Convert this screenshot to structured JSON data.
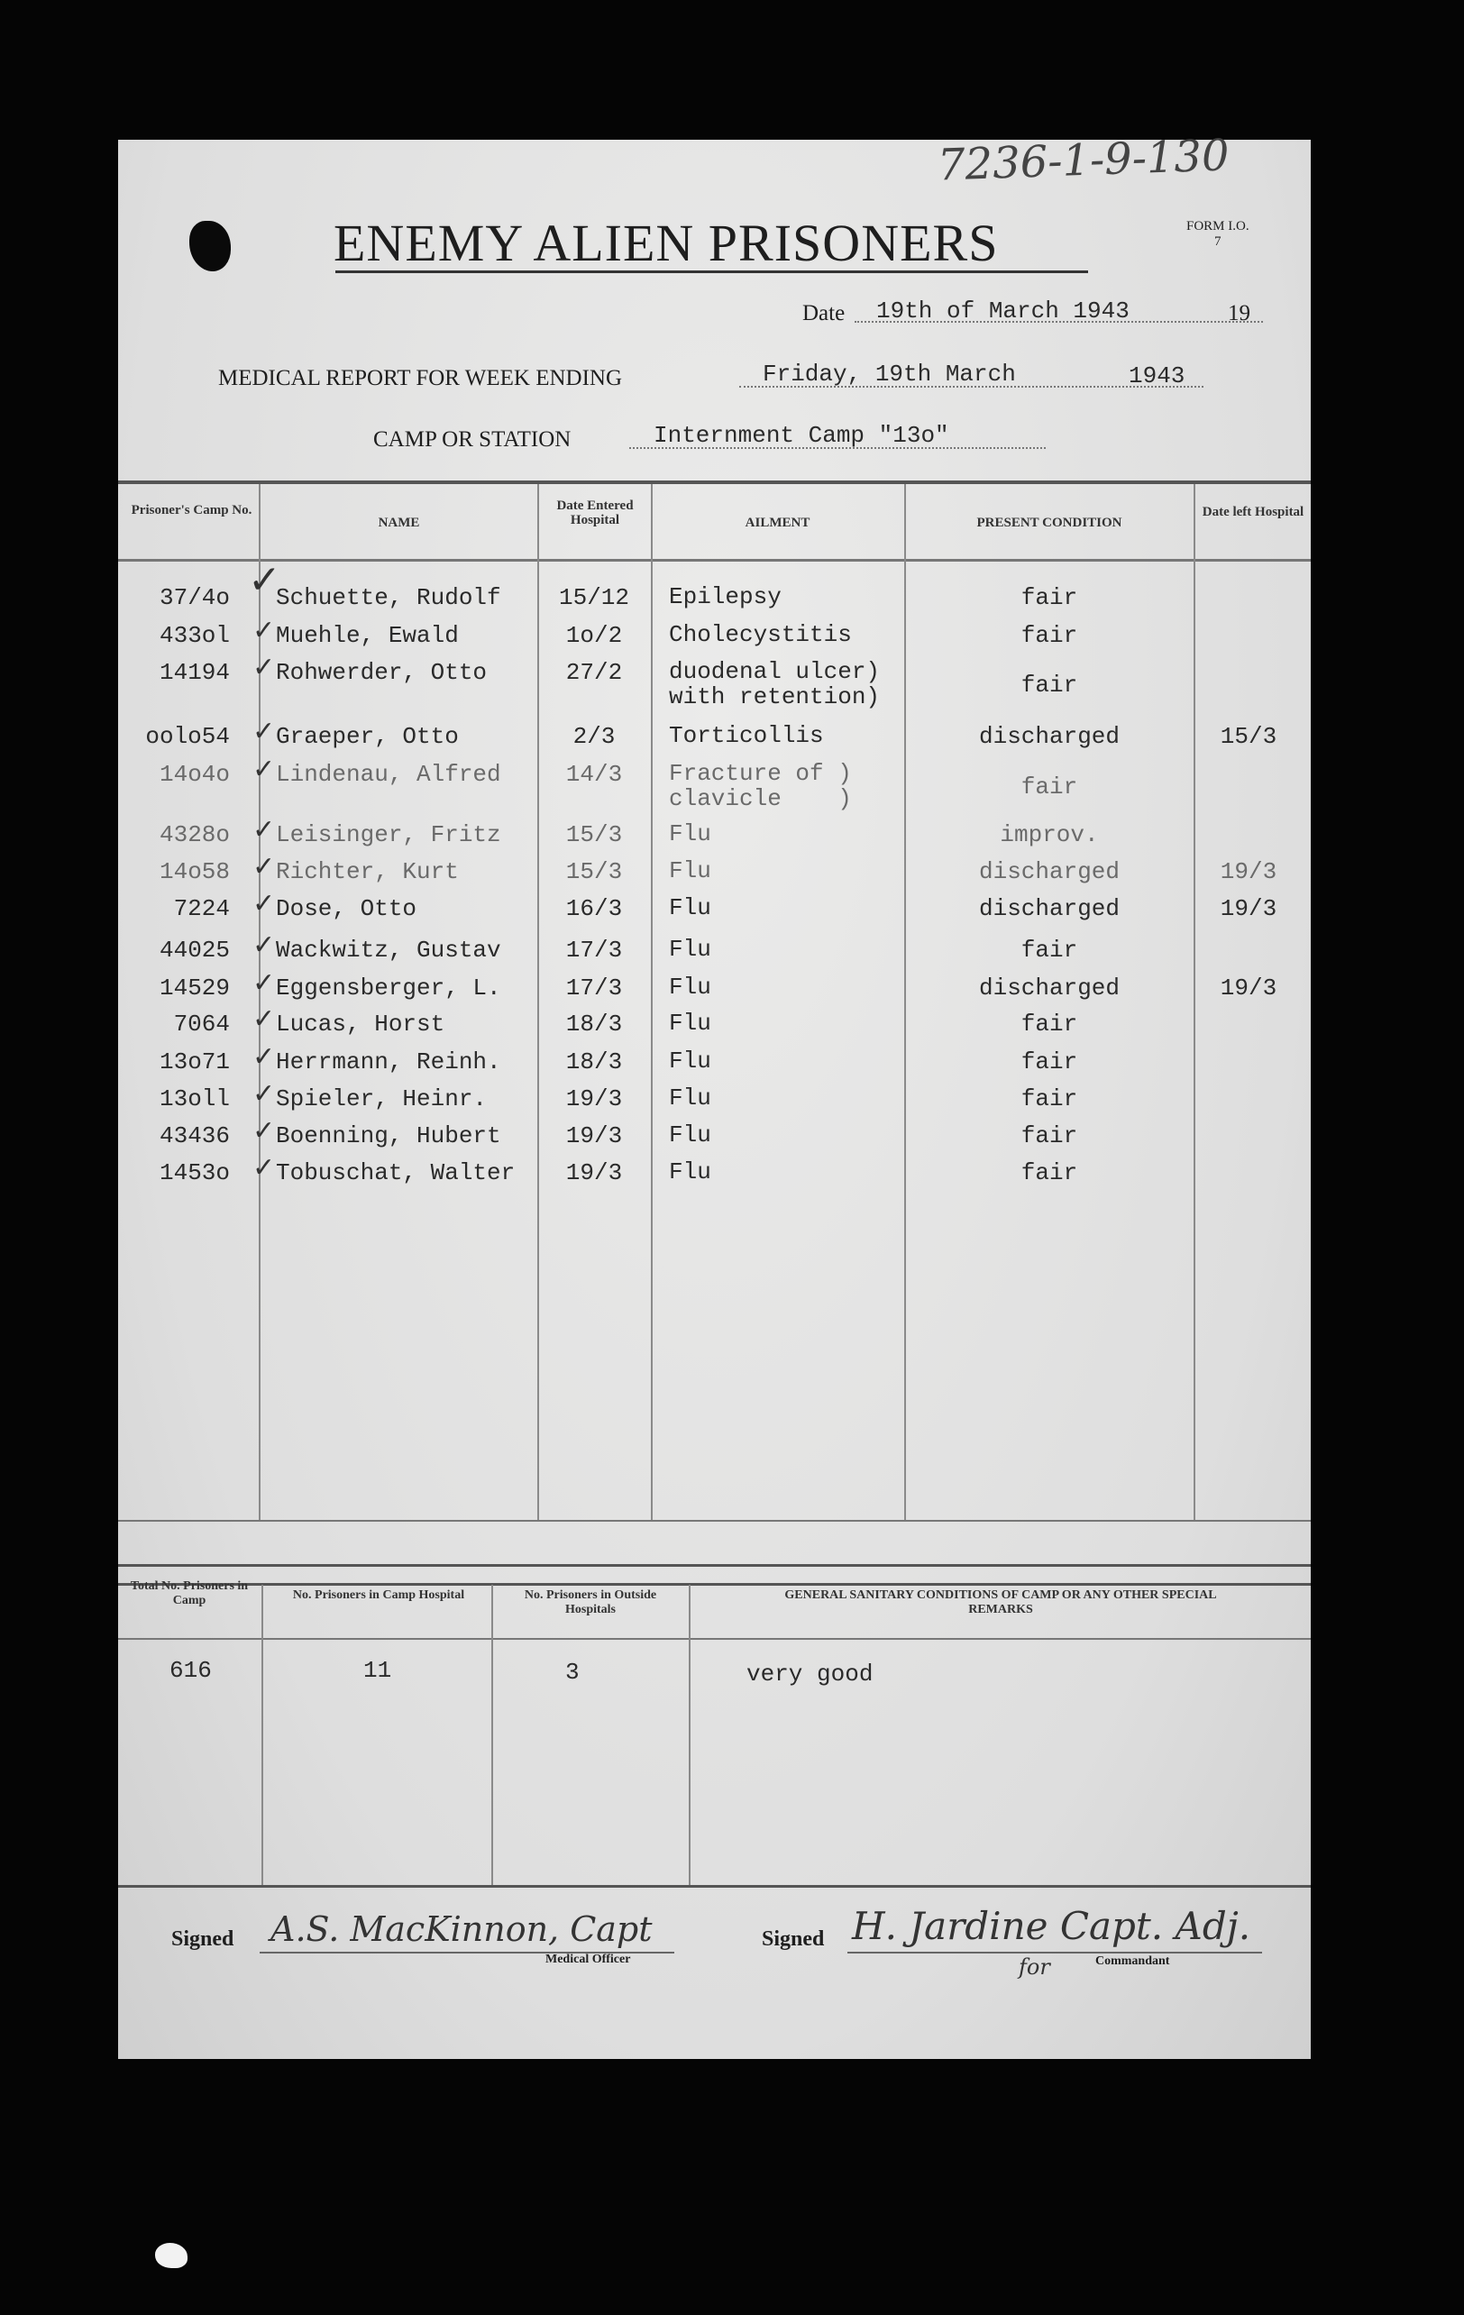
{
  "reference_number": "7236-1-9-130",
  "title": "ENEMY ALIEN PRISONERS",
  "form_id": {
    "label": "FORM I.O.",
    "number": "7"
  },
  "date": {
    "label": "Date",
    "value": "19th of March 1943",
    "suffix": "19"
  },
  "week_ending": {
    "label": "MEDICAL REPORT FOR WEEK ENDING",
    "value": "Friday, 19th March",
    "year": "1943"
  },
  "camp": {
    "label": "CAMP OR STATION",
    "value": "Internment Camp \"13o\""
  },
  "table": {
    "headers": [
      "Prisoner's Camp No.",
      "NAME",
      "Date Entered Hospital",
      "AILMENT",
      "PRESENT CONDITION",
      "Date left Hospital"
    ],
    "rows": [
      {
        "camp_no": "37/4o",
        "name": "Schuette, Rudolf",
        "entered": "15/12",
        "ailment": "Epilepsy",
        "condition": "fair",
        "left": ""
      },
      {
        "camp_no": "433ol",
        "name": "Muehle, Ewald",
        "entered": "1o/2",
        "ailment": "Cholecystitis",
        "condition": "fair",
        "left": ""
      },
      {
        "camp_no": "14194",
        "name": "Rohwerder, Otto",
        "entered": "27/2",
        "ailment": "duodenal ulcer)\nwith retention)",
        "condition": "fair",
        "left": ""
      },
      {
        "camp_no": "oolo54",
        "name": "Graeper, Otto",
        "entered": "2/3",
        "ailment": "Torticollis",
        "condition": "discharged",
        "left": "15/3"
      },
      {
        "camp_no": "14o4o",
        "name": "Lindenau, Alfred",
        "entered": "14/3",
        "ailment": "Fracture of )\nclavicle    )",
        "condition": "fair",
        "left": ""
      },
      {
        "camp_no": "4328o",
        "name": "Leisinger, Fritz",
        "entered": "15/3",
        "ailment": "Flu",
        "condition": "improv.",
        "left": ""
      },
      {
        "camp_no": "14o58",
        "name": "Richter, Kurt",
        "entered": "15/3",
        "ailment": "Flu",
        "condition": "discharged",
        "left": "19/3"
      },
      {
        "camp_no": "7224",
        "name": "Dose, Otto",
        "entered": "16/3",
        "ailment": "Flu",
        "condition": "discharged",
        "left": "19/3"
      },
      {
        "camp_no": "44025",
        "name": "Wackwitz, Gustav",
        "entered": "17/3",
        "ailment": "Flu",
        "condition": "fair",
        "left": ""
      },
      {
        "camp_no": "14529",
        "name": "Eggensberger, L.",
        "entered": "17/3",
        "ailment": "Flu",
        "condition": "discharged",
        "left": "19/3"
      },
      {
        "camp_no": "7064",
        "name": "Lucas, Horst",
        "entered": "18/3",
        "ailment": "Flu",
        "condition": "fair",
        "left": ""
      },
      {
        "camp_no": "13o71",
        "name": "Herrmann, Reinh.",
        "entered": "18/3",
        "ailment": "Flu",
        "condition": "fair",
        "left": ""
      },
      {
        "camp_no": "13oll",
        "name": "Spieler, Heinr.",
        "entered": "19/3",
        "ailment": "Flu",
        "condition": "fair",
        "left": ""
      },
      {
        "camp_no": "43436",
        "name": "Boenning, Hubert",
        "entered": "19/3",
        "ailment": "Flu",
        "condition": "fair",
        "left": ""
      },
      {
        "camp_no": "1453o",
        "name": "Tobuschat, Walter",
        "entered": "19/3",
        "ailment": "Flu",
        "condition": "fair",
        "left": ""
      }
    ]
  },
  "summary": {
    "headers": [
      "Total No. Prisoners in Camp",
      "No. Prisoners in Camp Hospital",
      "No. Prisoners in Outside Hospitals",
      "GENERAL SANITARY CONDITIONS OF CAMP OR ANY OTHER SPECIAL REMARKS"
    ],
    "total": "616",
    "camp_hospital": "11",
    "outside_hospitals": "3",
    "remarks": "very good"
  },
  "signatures": {
    "left": {
      "label": "Signed",
      "signature": "A.S. MacKinnon, Capt",
      "role": "Medical Officer"
    },
    "right": {
      "label": "Signed",
      "signature": "H. Jardine Capt. Adj.",
      "for": "for",
      "role": "Commandant"
    }
  }
}
